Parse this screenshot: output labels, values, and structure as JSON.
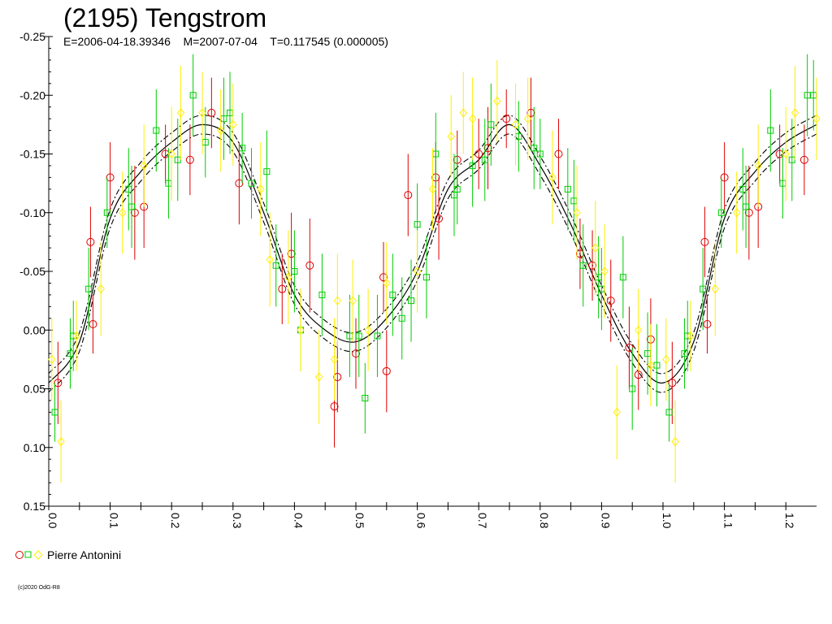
{
  "title": "(2195) Tengstrom",
  "subtitle": "E=2006-04-18.39346    M=2007-07-04    T=0.117545 (0.000005)",
  "legend": {
    "observer": "Pierre Antonini"
  },
  "copyright": "(c)2020 OdG-R8",
  "colors": {
    "red": "#dd0000",
    "green": "#00cc00",
    "yellow": "#ffee00",
    "axis": "#000000"
  },
  "chart_data": {
    "type": "scatter",
    "title": "(2195) Tengstrom",
    "subtitle": "E=2006-04-18.39346    M=2007-07-04    T=0.117545 (0.000005)",
    "xlabel": "",
    "ylabel": "",
    "xlim": [
      0,
      1.25
    ],
    "ylim": [
      -0.25,
      0.15
    ],
    "y_inverted": true,
    "x_ticks": [
      "0.0",
      "0.1",
      "0.2",
      "0.3",
      "0.4",
      "0.5",
      "0.6",
      "0.7",
      "0.8",
      "0.9",
      "1.0",
      "1.1",
      "1.2"
    ],
    "y_ticks": [
      "-0.25",
      "-0.20",
      "-0.15",
      "-0.10",
      "-0.05",
      "0.00",
      "0.05",
      "0.10",
      "0.15"
    ],
    "legend_position": "bottom-left",
    "fit_curve": {
      "period_phase": 0.5,
      "mean": -0.08,
      "band_offsets": [
        -0.008,
        0.008
      ],
      "points": [
        [
          0.0,
          0.045
        ],
        [
          0.05,
          0.01
        ],
        [
          0.1,
          -0.095
        ],
        [
          0.15,
          -0.135
        ],
        [
          0.2,
          -0.16
        ],
        [
          0.25,
          -0.175
        ],
        [
          0.3,
          -0.16
        ],
        [
          0.35,
          -0.1
        ],
        [
          0.4,
          -0.03
        ],
        [
          0.45,
          0.0
        ],
        [
          0.5,
          0.01
        ],
        [
          0.55,
          -0.01
        ],
        [
          0.6,
          -0.05
        ],
        [
          0.65,
          -0.12
        ],
        [
          0.7,
          -0.145
        ],
        [
          0.75,
          -0.175
        ],
        [
          0.8,
          -0.14
        ],
        [
          0.85,
          -0.09
        ],
        [
          0.9,
          -0.03
        ],
        [
          0.95,
          0.02
        ],
        [
          1.0,
          0.045
        ],
        [
          1.05,
          0.01
        ],
        [
          1.1,
          -0.095
        ],
        [
          1.15,
          -0.135
        ],
        [
          1.2,
          -0.16
        ],
        [
          1.25,
          -0.175
        ]
      ]
    },
    "series": [
      {
        "name": "Pierre Antonini",
        "marker": "circle",
        "color": "red",
        "points": [
          [
            0.015,
            0.045,
            0.035
          ],
          [
            0.068,
            -0.075,
            0.03
          ],
          [
            0.072,
            -0.005,
            0.025
          ],
          [
            0.1,
            -0.13,
            0.03
          ],
          [
            0.14,
            -0.1,
            0.04
          ],
          [
            0.155,
            -0.105,
            0.035
          ],
          [
            0.19,
            -0.15,
            0.025
          ],
          [
            0.23,
            -0.145,
            0.03
          ],
          [
            0.265,
            -0.185,
            0.03
          ],
          [
            0.31,
            -0.125,
            0.035
          ],
          [
            0.38,
            -0.035,
            0.03
          ],
          [
            0.395,
            -0.065,
            0.035
          ],
          [
            0.425,
            -0.055,
            0.04
          ],
          [
            0.465,
            0.065,
            0.035
          ],
          [
            0.47,
            0.04,
            0.03
          ],
          [
            0.5,
            0.02,
            0.03
          ],
          [
            0.545,
            -0.045,
            0.03
          ],
          [
            0.55,
            0.035,
            0.035
          ],
          [
            0.585,
            -0.115,
            0.035
          ],
          [
            0.63,
            -0.13,
            0.03
          ],
          [
            0.635,
            -0.095,
            0.035
          ],
          [
            0.665,
            -0.145,
            0.025
          ],
          [
            0.7,
            -0.15,
            0.03
          ],
          [
            0.715,
            -0.155,
            0.035
          ],
          [
            0.745,
            -0.18,
            0.025
          ],
          [
            0.785,
            -0.185,
            0.03
          ],
          [
            0.83,
            -0.15,
            0.03
          ],
          [
            0.865,
            -0.065,
            0.03
          ],
          [
            0.885,
            -0.055,
            0.03
          ],
          [
            0.915,
            -0.025,
            0.035
          ],
          [
            0.945,
            0.015,
            0.035
          ],
          [
            0.96,
            0.038,
            0.03
          ],
          [
            0.98,
            0.008,
            0.035
          ],
          [
            1.015,
            0.045,
            0.035
          ],
          [
            1.068,
            -0.075,
            0.03
          ],
          [
            1.072,
            -0.005,
            0.025
          ],
          [
            1.1,
            -0.13,
            0.03
          ],
          [
            1.14,
            -0.1,
            0.04
          ],
          [
            1.155,
            -0.105,
            0.035
          ],
          [
            1.19,
            -0.15,
            0.025
          ],
          [
            1.23,
            -0.145,
            0.03
          ]
        ]
      },
      {
        "name": "",
        "marker": "square",
        "color": "green",
        "points": [
          [
            0.01,
            0.07,
            0.025
          ],
          [
            0.035,
            0.02,
            0.03
          ],
          [
            0.04,
            0.005,
            0.03
          ],
          [
            0.065,
            -0.035,
            0.035
          ],
          [
            0.095,
            -0.1,
            0.03
          ],
          [
            0.13,
            -0.12,
            0.035
          ],
          [
            0.135,
            -0.105,
            0.035
          ],
          [
            0.175,
            -0.17,
            0.035
          ],
          [
            0.195,
            -0.125,
            0.03
          ],
          [
            0.21,
            -0.145,
            0.035
          ],
          [
            0.235,
            -0.2,
            0.035
          ],
          [
            0.255,
            -0.16,
            0.03
          ],
          [
            0.285,
            -0.18,
            0.035
          ],
          [
            0.295,
            -0.185,
            0.035
          ],
          [
            0.315,
            -0.155,
            0.03
          ],
          [
            0.33,
            -0.125,
            0.03
          ],
          [
            0.355,
            -0.135,
            0.035
          ],
          [
            0.37,
            -0.055,
            0.035
          ],
          [
            0.4,
            -0.05,
            0.035
          ],
          [
            0.41,
            0.0,
            0.035
          ],
          [
            0.445,
            -0.03,
            0.035
          ],
          [
            0.49,
            0.005,
            0.035
          ],
          [
            0.505,
            0.005,
            0.035
          ],
          [
            0.515,
            0.058,
            0.03
          ],
          [
            0.535,
            0.005,
            0.035
          ],
          [
            0.56,
            -0.03,
            0.035
          ],
          [
            0.575,
            -0.01,
            0.035
          ],
          [
            0.59,
            -0.025,
            0.035
          ],
          [
            0.6,
            -0.09,
            0.035
          ],
          [
            0.615,
            -0.045,
            0.035
          ],
          [
            0.63,
            -0.15,
            0.035
          ],
          [
            0.66,
            -0.115,
            0.035
          ],
          [
            0.665,
            -0.12,
            0.03
          ],
          [
            0.69,
            -0.14,
            0.035
          ],
          [
            0.71,
            -0.145,
            0.035
          ],
          [
            0.72,
            -0.175,
            0.035
          ],
          [
            0.765,
            -0.165,
            0.03
          ],
          [
            0.79,
            -0.155,
            0.035
          ],
          [
            0.8,
            -0.15,
            0.03
          ],
          [
            0.845,
            -0.12,
            0.035
          ],
          [
            0.855,
            -0.11,
            0.035
          ],
          [
            0.87,
            -0.055,
            0.035
          ],
          [
            0.895,
            -0.045,
            0.035
          ],
          [
            0.9,
            -0.035,
            0.035
          ],
          [
            0.935,
            -0.045,
            0.035
          ],
          [
            0.95,
            0.05,
            0.035
          ],
          [
            0.975,
            0.02,
            0.035
          ],
          [
            0.99,
            0.03,
            0.035
          ],
          [
            1.01,
            0.07,
            0.025
          ],
          [
            1.035,
            0.02,
            0.03
          ],
          [
            1.04,
            0.005,
            0.03
          ],
          [
            1.065,
            -0.035,
            0.035
          ],
          [
            1.095,
            -0.1,
            0.03
          ],
          [
            1.13,
            -0.12,
            0.035
          ],
          [
            1.135,
            -0.105,
            0.035
          ],
          [
            1.175,
            -0.17,
            0.035
          ],
          [
            1.195,
            -0.125,
            0.03
          ],
          [
            1.21,
            -0.145,
            0.035
          ],
          [
            1.235,
            -0.2,
            0.035
          ],
          [
            1.245,
            -0.2,
            0.03
          ]
        ]
      },
      {
        "name": "",
        "marker": "diamond",
        "color": "yellow",
        "points": [
          [
            0.005,
            0.025,
            0.035
          ],
          [
            0.02,
            0.095,
            0.035
          ],
          [
            0.045,
            0.005,
            0.03
          ],
          [
            0.085,
            -0.035,
            0.04
          ],
          [
            0.12,
            -0.1,
            0.035
          ],
          [
            0.155,
            -0.14,
            0.035
          ],
          [
            0.2,
            -0.15,
            0.04
          ],
          [
            0.215,
            -0.185,
            0.04
          ],
          [
            0.25,
            -0.185,
            0.035
          ],
          [
            0.28,
            -0.17,
            0.035
          ],
          [
            0.3,
            -0.175,
            0.035
          ],
          [
            0.345,
            -0.12,
            0.04
          ],
          [
            0.36,
            -0.06,
            0.04
          ],
          [
            0.39,
            -0.045,
            0.04
          ],
          [
            0.41,
            0.0,
            0.035
          ],
          [
            0.44,
            0.04,
            0.04
          ],
          [
            0.465,
            0.025,
            0.035
          ],
          [
            0.47,
            -0.025,
            0.04
          ],
          [
            0.495,
            -0.025,
            0.035
          ],
          [
            0.52,
            0.0,
            0.035
          ],
          [
            0.55,
            -0.04,
            0.035
          ],
          [
            0.6,
            -0.05,
            0.035
          ],
          [
            0.625,
            -0.12,
            0.035
          ],
          [
            0.655,
            -0.165,
            0.035
          ],
          [
            0.675,
            -0.185,
            0.035
          ],
          [
            0.69,
            -0.18,
            0.035
          ],
          [
            0.73,
            -0.195,
            0.035
          ],
          [
            0.76,
            -0.175,
            0.035
          ],
          [
            0.78,
            -0.18,
            0.035
          ],
          [
            0.82,
            -0.13,
            0.04
          ],
          [
            0.86,
            -0.1,
            0.04
          ],
          [
            0.89,
            -0.07,
            0.04
          ],
          [
            0.905,
            -0.05,
            0.04
          ],
          [
            0.925,
            0.07,
            0.04
          ],
          [
            0.96,
            0.0,
            0.035
          ],
          [
            0.98,
            0.03,
            0.035
          ],
          [
            1.005,
            0.025,
            0.035
          ],
          [
            1.02,
            0.095,
            0.035
          ],
          [
            1.045,
            0.005,
            0.03
          ],
          [
            1.085,
            -0.035,
            0.04
          ],
          [
            1.12,
            -0.1,
            0.035
          ],
          [
            1.155,
            -0.14,
            0.035
          ],
          [
            1.2,
            -0.15,
            0.04
          ],
          [
            1.215,
            -0.185,
            0.04
          ],
          [
            1.25,
            -0.18,
            0.035
          ]
        ]
      }
    ]
  }
}
